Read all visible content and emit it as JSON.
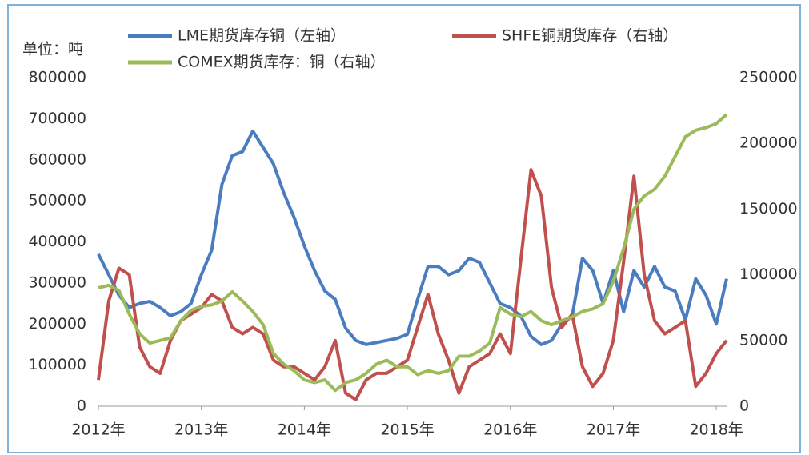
{
  "chart_data": {
    "type": "line",
    "y_label": "单位：吨",
    "x": [
      2012.0,
      2012.1,
      2012.2,
      2012.3,
      2012.4,
      2012.5,
      2012.6,
      2012.7,
      2012.8,
      2012.9,
      2013.0,
      2013.1,
      2013.2,
      2013.3,
      2013.4,
      2013.5,
      2013.6,
      2013.7,
      2013.8,
      2013.9,
      2014.0,
      2014.1,
      2014.2,
      2014.3,
      2014.4,
      2014.5,
      2014.6,
      2014.7,
      2014.8,
      2014.9,
      2015.0,
      2015.1,
      2015.2,
      2015.3,
      2015.4,
      2015.5,
      2015.6,
      2015.7,
      2015.8,
      2015.9,
      2016.0,
      2016.1,
      2016.2,
      2016.3,
      2016.4,
      2016.5,
      2016.6,
      2016.7,
      2016.8,
      2016.9,
      2017.0,
      2017.1,
      2017.2,
      2017.3,
      2017.4,
      2017.5,
      2017.6,
      2017.7,
      2017.8,
      2017.9,
      2018.0,
      2018.1
    ],
    "series": [
      {
        "name": "LME期货库存铜（左轴）",
        "color": "#4a7cc0",
        "axis": "y",
        "values": [
          370000,
          320000,
          270000,
          240000,
          250000,
          255000,
          240000,
          220000,
          230000,
          250000,
          320000,
          380000,
          540000,
          610000,
          620000,
          670000,
          630000,
          590000,
          520000,
          460000,
          390000,
          330000,
          280000,
          260000,
          190000,
          160000,
          150000,
          155000,
          160000,
          165000,
          175000,
          260000,
          340000,
          340000,
          320000,
          330000,
          360000,
          350000,
          300000,
          250000,
          240000,
          220000,
          170000,
          150000,
          160000,
          200000,
          220000,
          360000,
          330000,
          250000,
          330000,
          230000,
          330000,
          290000,
          340000,
          290000,
          280000,
          210000,
          310000,
          270000,
          200000,
          310000
        ]
      },
      {
        "name": "SHFE铜期货库存（右轴）",
        "color": "#c0504d",
        "axis": "y2",
        "values": [
          20000,
          80000,
          105000,
          100000,
          45000,
          30000,
          25000,
          50000,
          65000,
          70000,
          75000,
          85000,
          80000,
          60000,
          55000,
          60000,
          55000,
          35000,
          30000,
          30000,
          25000,
          20000,
          30000,
          50000,
          10000,
          5000,
          20000,
          25000,
          25000,
          30000,
          35000,
          60000,
          85000,
          55000,
          35000,
          10000,
          30000,
          35000,
          40000,
          55000,
          40000,
          110000,
          180000,
          160000,
          90000,
          60000,
          70000,
          30000,
          15000,
          25000,
          50000,
          110000,
          175000,
          100000,
          65000,
          55000,
          60000,
          65000,
          15000,
          25000,
          40000,
          50000
        ]
      },
      {
        "name": "COMEX期货库存：铜（右轴）",
        "color": "#9bbb59",
        "axis": "y2",
        "values": [
          90000,
          92000,
          88000,
          70000,
          55000,
          48000,
          50000,
          52000,
          65000,
          73000,
          76000,
          77000,
          80000,
          87000,
          80000,
          72000,
          62000,
          40000,
          32000,
          27000,
          20000,
          18000,
          20000,
          12000,
          18000,
          20000,
          25000,
          32000,
          35000,
          30000,
          30000,
          24000,
          27000,
          25000,
          27000,
          38000,
          38000,
          42000,
          48000,
          75000,
          70000,
          68000,
          72000,
          65000,
          62000,
          65000,
          68000,
          72000,
          74000,
          78000,
          95000,
          120000,
          150000,
          160000,
          165000,
          175000,
          190000,
          205000,
          210000,
          212000,
          215000,
          222000
        ]
      }
    ],
    "xlim": [
      2012,
      2018.1
    ],
    "xticks": [
      {
        "value": 2012,
        "label": "2012年"
      },
      {
        "value": 2013,
        "label": "2013年"
      },
      {
        "value": 2014,
        "label": "2014年"
      },
      {
        "value": 2015,
        "label": "2015年"
      },
      {
        "value": 2016,
        "label": "2016年"
      },
      {
        "value": 2017,
        "label": "2017年"
      },
      {
        "value": 2018,
        "label": "2018年"
      }
    ],
    "ylim": [
      0,
      800000
    ],
    "yticks": [
      0,
      100000,
      200000,
      300000,
      400000,
      500000,
      600000,
      700000,
      800000
    ],
    "y2lim": [
      0,
      250000
    ],
    "y2ticks": [
      0,
      50000,
      100000,
      150000,
      200000,
      250000
    ]
  }
}
